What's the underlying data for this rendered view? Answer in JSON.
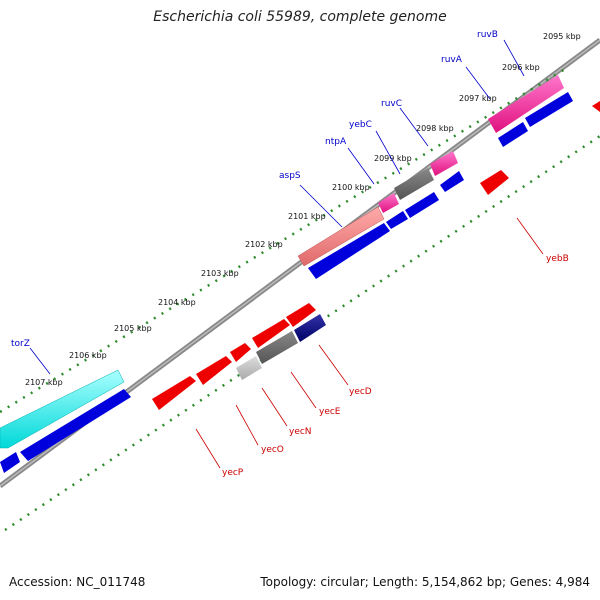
{
  "title": "Escherichia coli 55989, complete genome",
  "footer": {
    "accession": "Accession: NC_011748",
    "summary": "Topology: circular; Length: 5,154,862 bp; Genes: 4,984"
  },
  "kbp_labels": [
    "2095 kbp",
    "2096 kbp",
    "2097 kbp",
    "2098 kbp",
    "2099 kbp",
    "2100 kbp",
    "2101 kbp",
    "2102 kbp",
    "2103 kbp",
    "2104 kbp",
    "2105 kbp",
    "2106 kbp",
    "2107 kbp"
  ],
  "genes_upper": [
    "ruvB",
    "ruvA",
    "ruvC",
    "yebC",
    "ntpA",
    "aspS",
    "torZ"
  ],
  "genes_lower": [
    "yebB",
    "yecD",
    "yecE",
    "yecN",
    "yecO",
    "yecP"
  ],
  "colors": {
    "forward_label": "#0000cc",
    "reverse_label": "#cc0000",
    "cds_forward": "#0000dd",
    "cds_reverse": "#ee0000",
    "tick": "#2e8b2e"
  }
}
